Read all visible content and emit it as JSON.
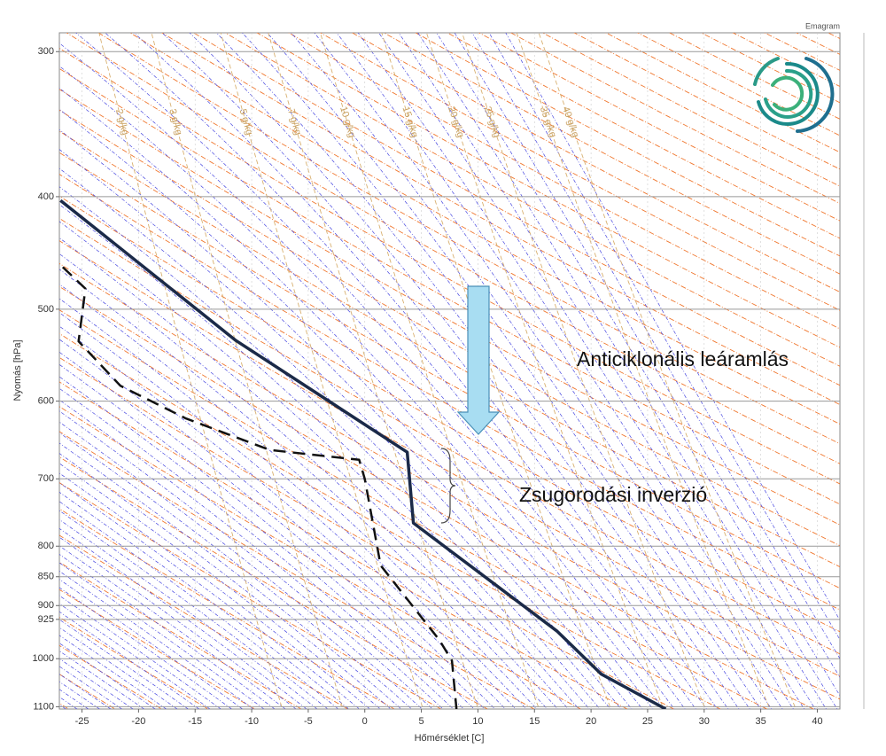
{
  "chart_data": {
    "type": "sounding",
    "title": "Emagram",
    "x_label": "Hőmérséklet [C]",
    "y_label": "Nyomás [hPa]",
    "xlim": [
      -27,
      42
    ],
    "ylim": [
      1105,
      289
    ],
    "log_y": true,
    "grid": true,
    "xticks": [
      -25,
      -20,
      -15,
      -10,
      -5,
      0,
      5,
      10,
      15,
      20,
      25,
      30,
      35,
      40
    ],
    "yticks": [
      300,
      400,
      500,
      600,
      700,
      800,
      850,
      900,
      925,
      1000,
      1100
    ],
    "series": [
      {
        "color": "#1b2a48",
        "dashed": false,
        "x": [
          -26.9,
          -11.4,
          3.75,
          4.3,
          17.0,
          20.9,
          26.6
        ],
        "values": [
          403,
          532,
          664,
          764,
          947,
          1031,
          1105
        ]
      },
      {
        "color": "#111111",
        "dashed": true,
        "x": [
          -26.7,
          -24.7,
          -25.3,
          -21.6,
          -15.8,
          -8.4,
          -0.5,
          0.0,
          1.4,
          6.6,
          7.7,
          8.1
        ],
        "values": [
          460,
          480,
          533,
          582,
          621,
          661,
          674,
          700,
          831,
          964,
          1004,
          1105
        ]
      }
    ],
    "mixing_ratios": [
      {
        "value": 2,
        "label": "2 g/kg"
      },
      {
        "value": 3,
        "label": "3 g/kg"
      },
      {
        "value": 5,
        "label": "5 g/kg"
      },
      {
        "value": 7,
        "label": "7 g/kg"
      },
      {
        "value": 10,
        "label": "10 g/kg"
      },
      {
        "value": 15,
        "label": "15 g/kg"
      },
      {
        "value": 20,
        "label": "20 g/kg"
      },
      {
        "value": 25,
        "label": "25 g/kg"
      },
      {
        "value": 35,
        "label": "35 g/kg"
      },
      {
        "value": 40,
        "label": "40 g/kg"
      }
    ],
    "annotations": [
      "Anticiklonális leáramlás",
      "Zsugorodási inverzió"
    ]
  }
}
